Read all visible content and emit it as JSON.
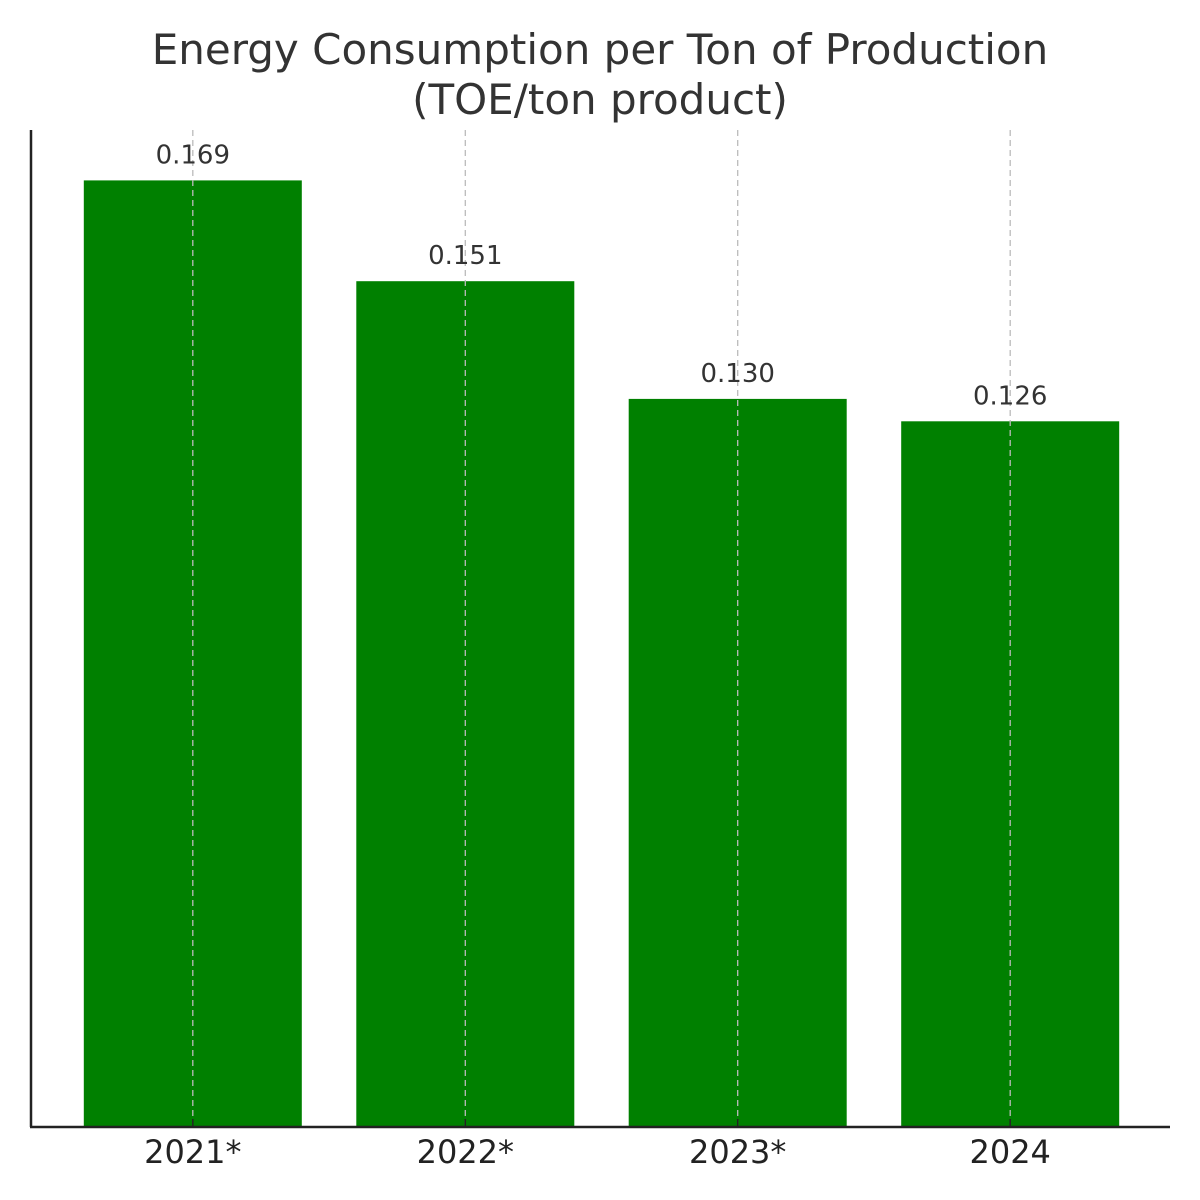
{
  "chart_data": {
    "type": "bar",
    "title_lines": [
      "Energy Consumption per Ton of Production",
      "(TOE/ton product)"
    ],
    "categories": [
      "2021*",
      "2022*",
      "2023*",
      "2024"
    ],
    "values": [
      0.169,
      0.151,
      0.13,
      0.126
    ],
    "value_labels": [
      "0.169",
      "0.151",
      "0.130",
      "0.126"
    ],
    "xlabel": "",
    "ylabel": "",
    "ylim": [
      0,
      0.178
    ],
    "grid": "x-dashed",
    "bar_color": "#008000"
  }
}
